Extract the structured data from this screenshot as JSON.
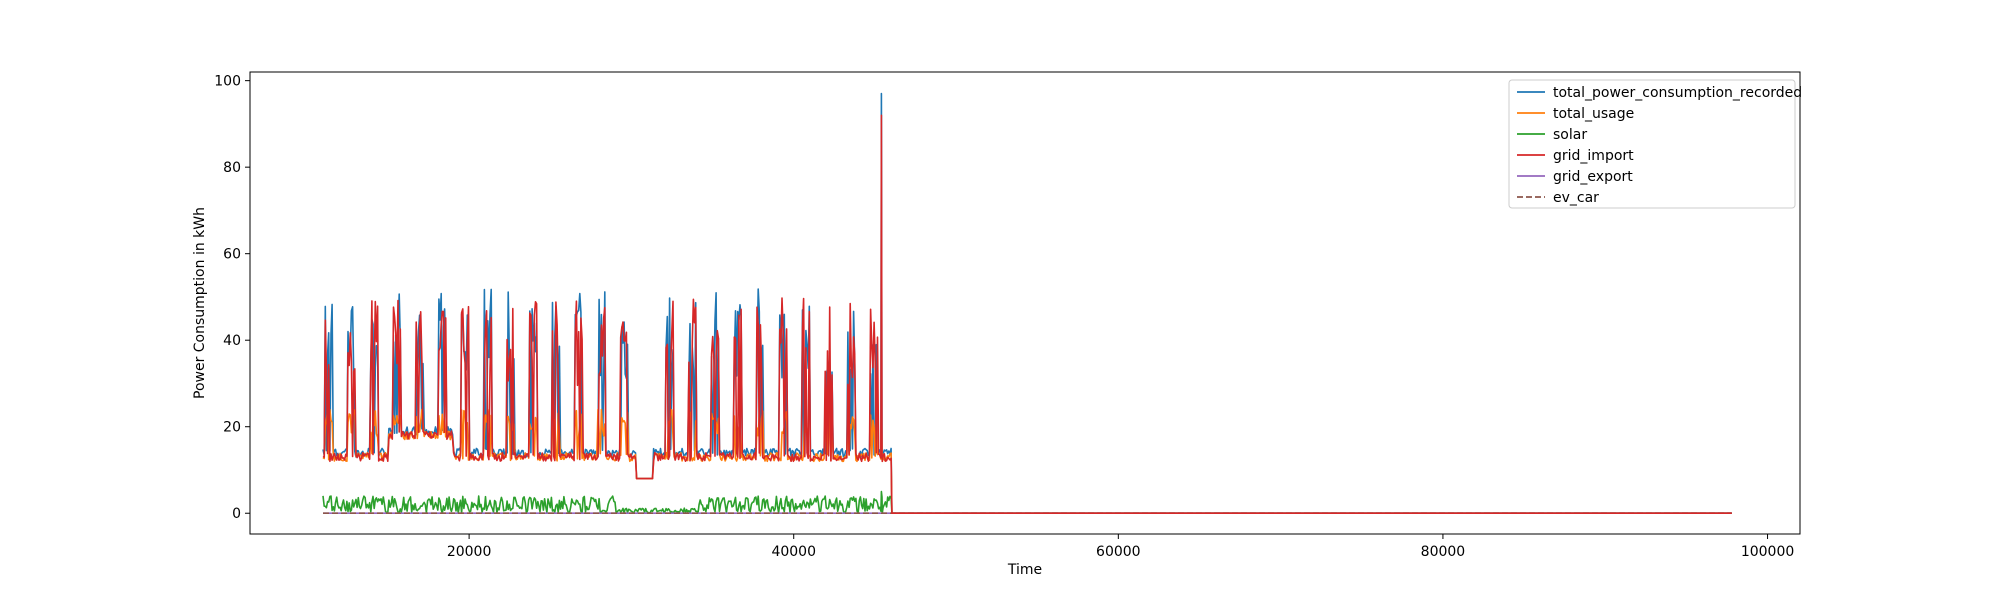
{
  "chart_data": {
    "type": "line",
    "title": "",
    "xlabel": "Time",
    "ylabel": "Power Consumption in kWh",
    "xlim": [
      6500,
      102000
    ],
    "ylim": [
      -4.8,
      102.0
    ],
    "xticks": [
      20000,
      40000,
      60000,
      80000,
      100000
    ],
    "yticks": [
      0,
      20,
      40,
      60,
      80,
      100
    ],
    "grid": false,
    "legend_position": "top-right",
    "data_range": {
      "x_start": 11000,
      "active_end": 46000,
      "x_end": 97800
    },
    "series": [
      {
        "name": "total_power_consumption_recorded",
        "color": "#1f77b4",
        "style": "solid",
        "base": 13,
        "peak": 52,
        "max": 97,
        "tail": 0
      },
      {
        "name": "total_usage",
        "color": "#ff7f0e",
        "style": "solid",
        "base": 12,
        "peak": 24,
        "max": 26,
        "tail": 0
      },
      {
        "name": "solar",
        "color": "#2ca02c",
        "style": "solid",
        "base": 0,
        "peak": 4,
        "max": 5,
        "tail": 0
      },
      {
        "name": "grid_import",
        "color": "#d62728",
        "style": "solid",
        "base": 12,
        "peak": 50,
        "max": 92,
        "tail": 0
      },
      {
        "name": "grid_export",
        "color": "#9467bd",
        "style": "solid",
        "base": 0,
        "peak": 0,
        "max": 0,
        "tail": 0
      },
      {
        "name": "ev_car",
        "color": "#8c564b",
        "style": "dashed",
        "base": 0,
        "peak": 0,
        "max": 0,
        "tail": 0
      }
    ]
  }
}
